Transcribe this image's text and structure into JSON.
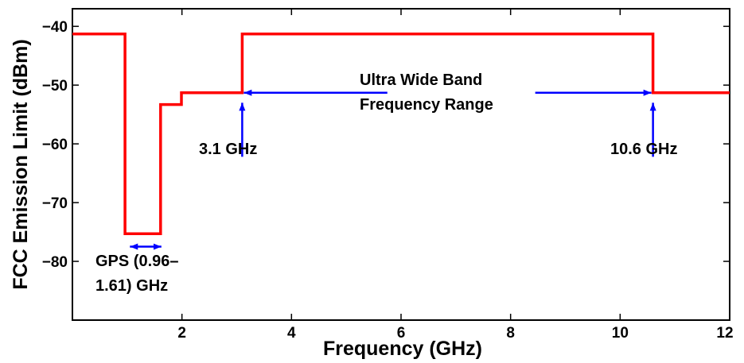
{
  "chart_data": {
    "type": "line",
    "title": "",
    "xlabel": "Frequency (GHz)",
    "ylabel": "FCC  Emission Limit (dBm)",
    "xlim": [
      0,
      12
    ],
    "ylim": [
      -90,
      -37
    ],
    "xticks": [
      2,
      4,
      6,
      8,
      10,
      12
    ],
    "xtick_labels": [
      "2",
      "4",
      "6",
      "8",
      "10",
      "12"
    ],
    "yticks": [
      -80,
      -70,
      -60,
      -50,
      -40
    ],
    "ytick_labels": [
      "-80",
      "-70",
      "-60",
      "-50",
      "-40"
    ],
    "grid": false,
    "series": [
      {
        "color": "#ff0000",
        "style": "step",
        "x": [
          0,
          0.96,
          0.96,
          1.61,
          1.61,
          1.99,
          1.99,
          3.1,
          3.1,
          10.6,
          10.6,
          12
        ],
        "y": [
          -41.3,
          -41.3,
          -75.3,
          -75.3,
          -53.3,
          -53.3,
          -51.3,
          -51.3,
          -41.3,
          -41.3,
          -51.3,
          -51.3
        ]
      }
    ],
    "annotations": {
      "uwb_line1": "Ultra Wide Band",
      "uwb_line2": "Frequency Range",
      "low_edge": "3.1 GHz",
      "high_edge": "10.6 GHz",
      "gps_line1": "GPS (0.96–",
      "gps_line2": "1.61) GHz"
    },
    "annotation_color": "#0000ff"
  }
}
